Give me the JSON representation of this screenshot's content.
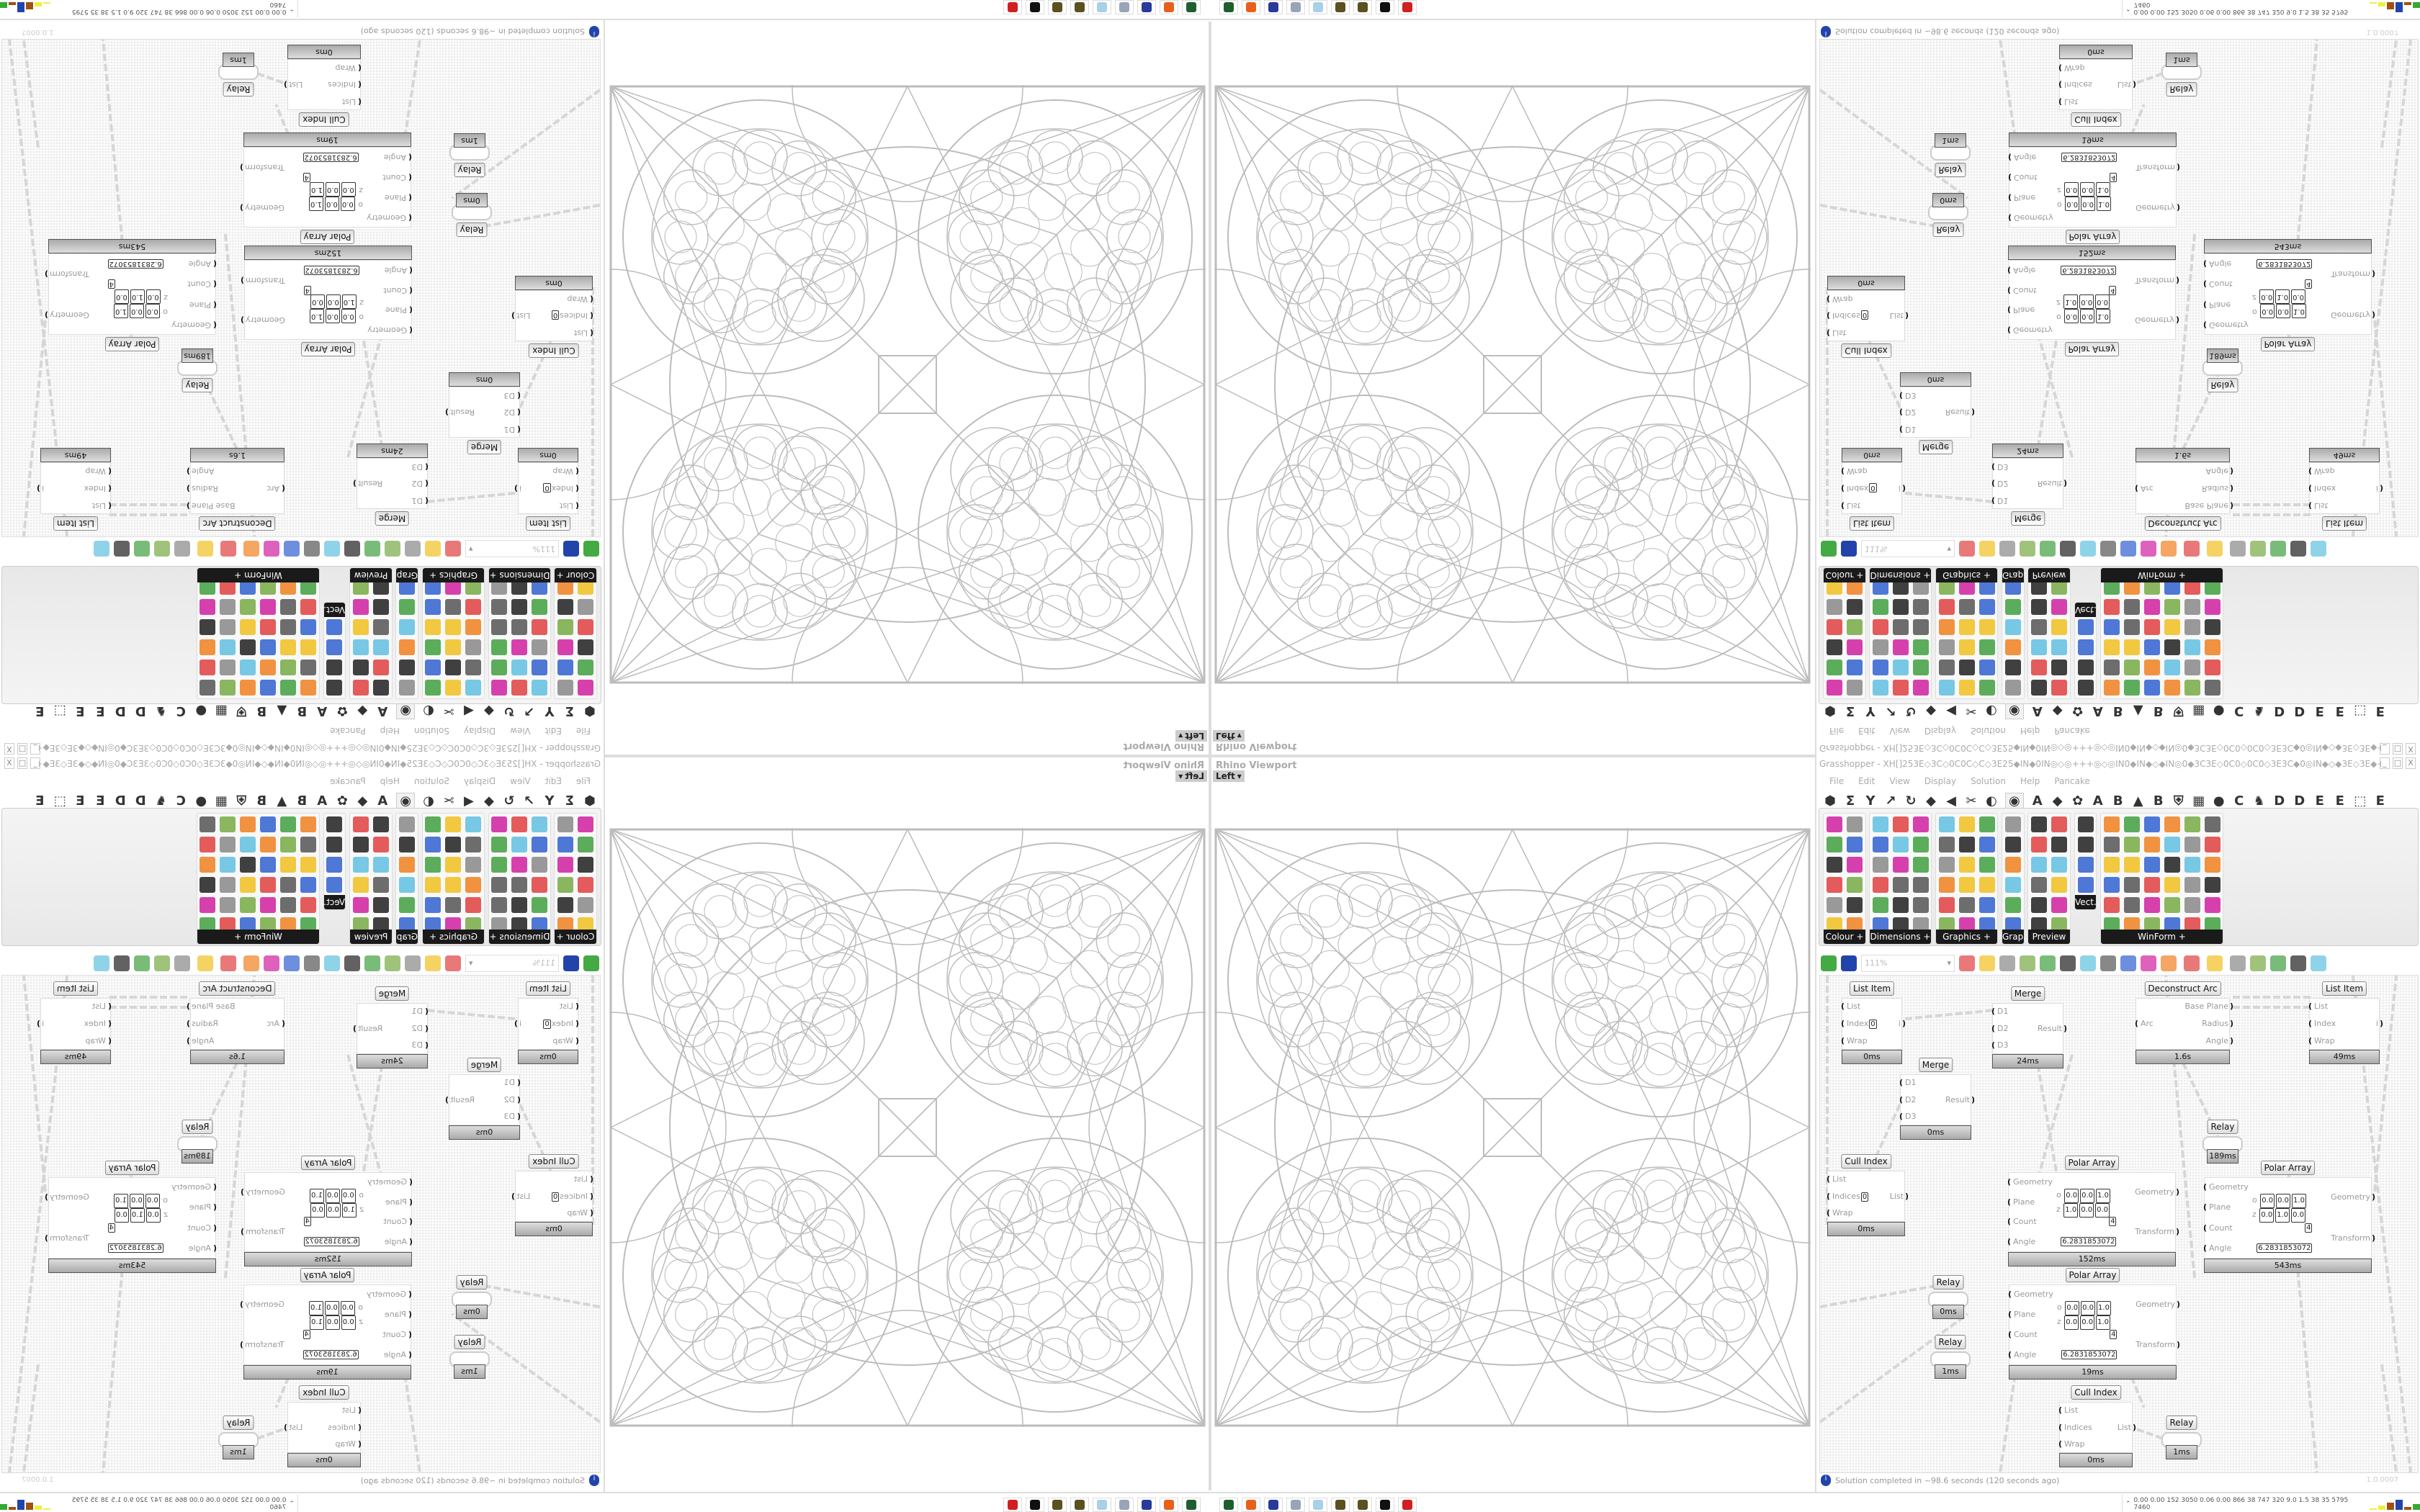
{
  "viewport": {
    "label": "Rhino Viewport",
    "view": "Left",
    "view_arrow": "▾"
  },
  "window": {
    "title": "Grasshopper - XH[]253E◇3C◇0C0C◇C◇3E25◆IN◆0IN◎◇◎+++◎◇◎IN0◆IN◆◇◆IN◎0◆3C3E◇0C0◇0C0◇3E3C◆0◎IN◆◇◆3E◇3E◆+25◆3E◇3E◆◇◆◇3E◆◆3C...",
    "controls": [
      "_",
      "□",
      "X"
    ]
  },
  "menu": [
    "File",
    "Edit",
    "View",
    "Display",
    "Solution",
    "Help",
    "Pancake"
  ],
  "tabs": [
    "⬢",
    "Σ",
    "Y",
    "↗",
    "↻",
    "◆",
    "◀",
    "✂",
    "◐",
    "◉",
    "A",
    "◆",
    "✿",
    "A",
    "B",
    "▲",
    "B",
    "⛨",
    "▦",
    "●",
    "C",
    "♞",
    "D",
    "D",
    "E",
    "E",
    "⬚",
    "E"
  ],
  "active_tab": 9,
  "ribbon_panels": [
    {
      "label": "Colour +",
      "cols": 2,
      "rows": 6
    },
    {
      "label": "Dimensions +",
      "cols": 3,
      "rows": 6
    },
    {
      "label": "Graphics +",
      "cols": 3,
      "rows": 6
    },
    {
      "label": "Grap...",
      "cols": 1,
      "rows": 6
    },
    {
      "label": "Preview +",
      "cols": 2,
      "rows": 6
    },
    {
      "label": "Vect...",
      "cols": 1,
      "rows": 4
    },
    {
      "label": "WinForm +",
      "cols": 6,
      "rows": 6
    }
  ],
  "toolbar": {
    "zoom": "111%"
  },
  "nodes": [
    {
      "title": "List Item",
      "time": "0ms",
      "inputs": [
        {
          "n": "List"
        },
        {
          "n": "Index",
          "v": "0"
        },
        {
          "n": "Wrap"
        }
      ],
      "outputs": [
        "i"
      ]
    },
    {
      "title": "Merge",
      "time": "24ms",
      "inputs": [
        {
          "n": "D1"
        },
        {
          "n": "D2"
        },
        {
          "n": "D3"
        }
      ],
      "outputs": [
        "Result"
      ]
    },
    {
      "title": "Deconstruct Arc",
      "time": "1.6s",
      "inputs": [
        {
          "n": "Arc"
        }
      ],
      "outputs": [
        "Base Plane",
        "Radius",
        "Angle"
      ]
    },
    {
      "title": "List Item",
      "time": "49ms",
      "inputs": [
        {
          "n": "List"
        },
        {
          "n": "Index"
        },
        {
          "n": "Wrap"
        }
      ],
      "outputs": [
        "i"
      ]
    },
    {
      "title": "Merge",
      "time": "0ms",
      "inputs": [
        {
          "n": "D1"
        },
        {
          "n": "D2"
        },
        {
          "n": "D3"
        }
      ],
      "outputs": [
        "Result"
      ]
    },
    {
      "title": "Cull Index",
      "time": "0ms",
      "inputs": [
        {
          "n": "List"
        },
        {
          "n": "Indices",
          "v": "0"
        },
        {
          "n": "Wrap"
        }
      ],
      "outputs": [
        "List"
      ]
    },
    {
      "title": "Polar Array",
      "time": "152ms",
      "inputs": [
        {
          "n": "Geometry"
        },
        {
          "n": "Plane",
          "o": [
            "0.0",
            "0.0",
            "1.0"
          ],
          "z": [
            "1.0",
            "0.0",
            "0.0"
          ]
        },
        {
          "n": "Count",
          "v": "4"
        },
        {
          "n": "Angle",
          "v": "6.2831853072"
        }
      ],
      "outputs": [
        "Geometry",
        "Transform"
      ]
    },
    {
      "title": "Relay",
      "time": "189ms",
      "inputs": [],
      "outputs": []
    },
    {
      "title": "Polar Array",
      "time": "543ms",
      "inputs": [
        {
          "n": "Geometry"
        },
        {
          "n": "Plane",
          "o": [
            "0.0",
            "0.0",
            "1.0"
          ],
          "z": [
            "0.0",
            "1.0",
            "0.0"
          ]
        },
        {
          "n": "Count",
          "v": "4"
        },
        {
          "n": "Angle",
          "v": "6.2831853072"
        }
      ],
      "outputs": [
        "Geometry",
        "Transform"
      ]
    },
    {
      "title": "Relay",
      "time": "0ms",
      "inputs": [],
      "outputs": []
    },
    {
      "title": "Relay",
      "time": "1ms",
      "inputs": [],
      "outputs": []
    },
    {
      "title": "Polar Array",
      "time": "19ms",
      "inputs": [
        {
          "n": "Geometry"
        },
        {
          "n": "Plane",
          "o": [
            "0.0",
            "0.0",
            "1.0"
          ],
          "z": [
            "0.0",
            "0.0",
            "1.0"
          ]
        },
        {
          "n": "Count",
          "v": "4"
        },
        {
          "n": "Angle",
          "v": "6.2831853072"
        }
      ],
      "outputs": [
        "Geometry",
        "Transform"
      ]
    },
    {
      "title": "Cull Index",
      "time": "0ms",
      "inputs": [
        {
          "n": "List"
        },
        {
          "n": "Indices"
        },
        {
          "n": "Wrap"
        }
      ],
      "outputs": [
        "List"
      ]
    },
    {
      "title": "Relay",
      "time": "1ms",
      "inputs": [],
      "outputs": []
    }
  ],
  "status": {
    "message": "Solution completed in ~98.6 seconds (120 seconds ago)",
    "version": "1.0.0007"
  },
  "taskbar": {
    "apps": [
      {
        "icon": "settings-gear-app-icon",
        "color": "#1f5f2f"
      },
      {
        "icon": "firefox-icon",
        "color": "#e8601c"
      },
      {
        "icon": "floppy-64-icon",
        "color": "#2a3a9a"
      },
      {
        "icon": "scroll-icon",
        "color": "#9aa4b8"
      },
      {
        "icon": "notepad-icon",
        "color": "#a8d0e8"
      },
      {
        "icon": "beetle-icon",
        "color": "#5a5020"
      },
      {
        "icon": "beetle-icon-2",
        "color": "#5a5020"
      },
      {
        "icon": "wolf-icon",
        "color": "#111111"
      },
      {
        "icon": "red-gear-icon",
        "color": "#d02020"
      }
    ],
    "tray_numbers": "0.00 0.00 152 3050 0.06 0.00 866 38 747 320 9.0 1.5 38 35 5795 7460",
    "tray_bars": [
      2,
      6,
      10,
      14,
      4,
      8
    ]
  }
}
